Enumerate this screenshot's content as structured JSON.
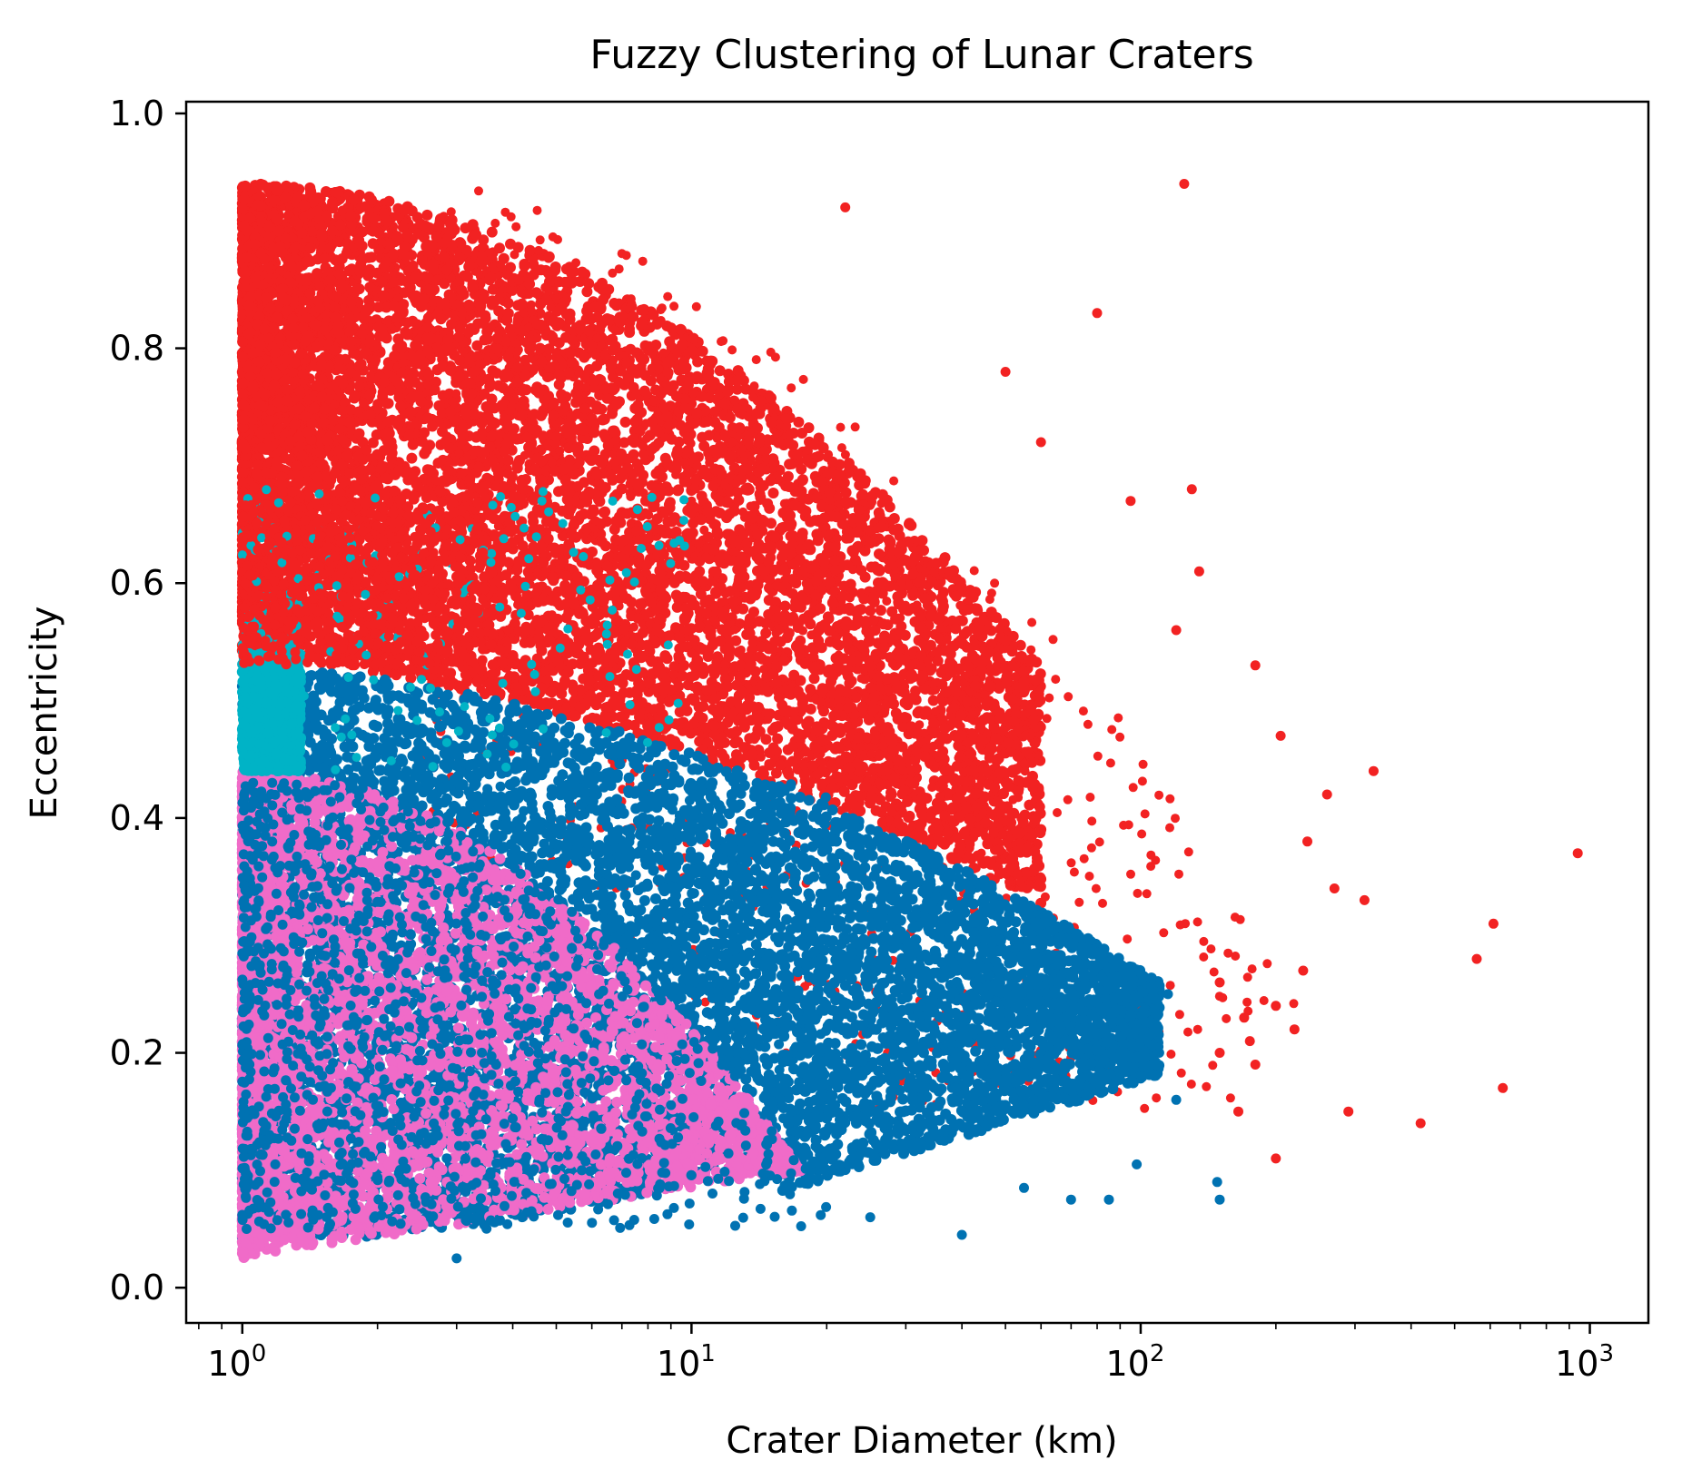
{
  "chart_data": {
    "type": "scatter",
    "title": "Fuzzy Clustering of Lunar Craters",
    "xlabel": "Crater Diameter (km)",
    "ylabel": "Eccentricity",
    "x_scale": "log",
    "xlim": [
      0.75,
      1350
    ],
    "ylim": [
      -0.03,
      1.01
    ],
    "x_ticks": [
      {
        "value": 1,
        "base": "10",
        "exp": "0"
      },
      {
        "value": 10,
        "base": "10",
        "exp": "1"
      },
      {
        "value": 100,
        "base": "10",
        "exp": "2"
      },
      {
        "value": 1000,
        "base": "10",
        "exp": "3"
      }
    ],
    "y_ticks": [
      {
        "value": 0.0,
        "label": "0.0"
      },
      {
        "value": 0.2,
        "label": "0.2"
      },
      {
        "value": 0.4,
        "label": "0.4"
      },
      {
        "value": 0.6,
        "label": "0.6"
      },
      {
        "value": 0.8,
        "label": "0.8"
      },
      {
        "value": 1.0,
        "label": "1.0"
      }
    ],
    "grid": false,
    "legend": "none",
    "series": [
      {
        "color": "#f22222",
        "dense_region": {
          "x_min": 1.0,
          "x_max": 60,
          "ecc_bottom_at_x1": 0.54,
          "ecc_top_at_x1": 0.94
        },
        "outliers": [
          [
            22,
            0.92
          ],
          [
            125,
            0.94
          ],
          [
            80,
            0.83
          ],
          [
            50,
            0.78
          ],
          [
            60,
            0.72
          ],
          [
            95,
            0.67
          ],
          [
            130,
            0.68
          ],
          [
            135,
            0.61
          ],
          [
            120,
            0.56
          ],
          [
            180,
            0.53
          ],
          [
            205,
            0.47
          ],
          [
            330,
            0.44
          ],
          [
            260,
            0.42
          ],
          [
            235,
            0.38
          ],
          [
            940,
            0.37
          ],
          [
            315,
            0.33
          ],
          [
            270,
            0.34
          ],
          [
            610,
            0.31
          ],
          [
            560,
            0.28
          ],
          [
            230,
            0.27
          ],
          [
            150,
            0.26
          ],
          [
            200,
            0.24
          ],
          [
            220,
            0.22
          ],
          [
            175,
            0.21
          ],
          [
            180,
            0.19
          ],
          [
            165,
            0.15
          ],
          [
            290,
            0.15
          ],
          [
            640,
            0.17
          ],
          [
            420,
            0.14
          ],
          [
            200,
            0.11
          ],
          [
            150,
            0.2
          ],
          [
            170,
            0.23
          ]
        ]
      },
      {
        "color": "#00b3c6",
        "dense_region": {
          "x_min": 1.0,
          "x_max": 10,
          "ecc_bottom": 0.44,
          "ecc_top": 0.68
        }
      },
      {
        "color": "#0072b2",
        "dense_region": {
          "x_min": 1.0,
          "x_max": 110,
          "ecc_bottom": 0.04,
          "ecc_top": 0.53
        },
        "outliers": [
          [
            148,
            0.09
          ],
          [
            150,
            0.075
          ],
          [
            98,
            0.105
          ],
          [
            85,
            0.075
          ],
          [
            70,
            0.075
          ],
          [
            55,
            0.085
          ],
          [
            40,
            0.045
          ],
          [
            25,
            0.06
          ],
          [
            3,
            0.025
          ],
          [
            120,
            0.16
          ],
          [
            110,
            0.2
          ],
          [
            115,
            0.25
          ]
        ]
      },
      {
        "color": "#f06bc8",
        "dense_region": {
          "x_min": 1.0,
          "x_max": 25,
          "ecc_bottom": 0.02,
          "ecc_top": 0.44
        }
      }
    ]
  }
}
